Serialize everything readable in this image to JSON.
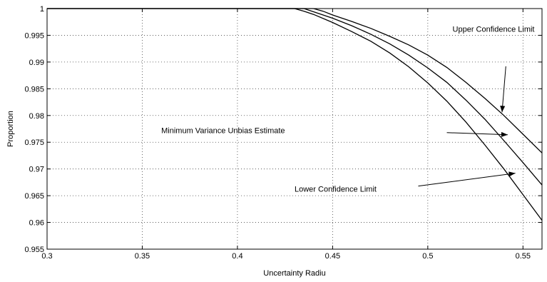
{
  "chart_data": {
    "type": "line",
    "title": "",
    "xlabel": "Uncertainty Radiu",
    "ylabel": "Proportion",
    "xlim": [
      0.3,
      0.56
    ],
    "ylim": [
      0.955,
      1
    ],
    "grid": true,
    "x_ticks": [
      {
        "value": 0.3,
        "label": "0.3"
      },
      {
        "value": 0.35,
        "label": "0.35"
      },
      {
        "value": 0.4,
        "label": "0.4"
      },
      {
        "value": 0.45,
        "label": "0.45"
      },
      {
        "value": 0.5,
        "label": "0.5"
      },
      {
        "value": 0.55,
        "label": "0.55"
      }
    ],
    "y_ticks": [
      {
        "value": 0.955,
        "label": "0.955"
      },
      {
        "value": 0.96,
        "label": "0.96"
      },
      {
        "value": 0.965,
        "label": "0.965"
      },
      {
        "value": 0.97,
        "label": "0.97"
      },
      {
        "value": 0.975,
        "label": "0.975"
      },
      {
        "value": 0.98,
        "label": "0.98"
      },
      {
        "value": 0.985,
        "label": "0.985"
      },
      {
        "value": 0.99,
        "label": "0.99"
      },
      {
        "value": 0.995,
        "label": "0.995"
      },
      {
        "value": 1,
        "label": "1"
      }
    ],
    "series": [
      {
        "x": [
          0.3,
          0.44,
          0.445,
          0.45,
          0.46,
          0.47,
          0.48,
          0.49,
          0.5,
          0.51,
          0.52,
          0.53,
          0.54,
          0.55,
          0.56
        ],
        "y": [
          1,
          1,
          0.9995,
          0.9988,
          0.9976,
          0.9963,
          0.9948,
          0.9932,
          0.9913,
          0.989,
          0.9862,
          0.9832,
          0.98,
          0.9765,
          0.973
        ]
      },
      {
        "x": [
          0.3,
          0.435,
          0.44,
          0.45,
          0.46,
          0.47,
          0.48,
          0.49,
          0.5,
          0.51,
          0.52,
          0.53,
          0.54,
          0.55,
          0.56
        ],
        "y": [
          1,
          1,
          0.9994,
          0.9982,
          0.9968,
          0.9952,
          0.9934,
          0.9913,
          0.9889,
          0.9862,
          0.9829,
          0.9793,
          0.9753,
          0.9712,
          0.967
        ]
      },
      {
        "x": [
          0.3,
          0.43,
          0.435,
          0.44,
          0.45,
          0.46,
          0.47,
          0.48,
          0.49,
          0.5,
          0.51,
          0.52,
          0.53,
          0.54,
          0.55,
          0.56
        ],
        "y": [
          1,
          1,
          0.9995,
          0.9989,
          0.9974,
          0.9957,
          0.9939,
          0.9917,
          0.9891,
          0.9861,
          0.9827,
          0.9788,
          0.9745,
          0.97,
          0.9652,
          0.9604
        ]
      }
    ],
    "annotations": [
      {
        "name": "upper-confidence-limit",
        "text": "Upper Confidence Limit",
        "x": 0.513,
        "y": 0.9962,
        "arrow_from": [
          0.541,
          0.9892
        ],
        "arrow_to": [
          0.539,
          0.9806
        ]
      },
      {
        "name": "minimum-variance-estimate",
        "text": "Minimum Variance Unbias Estimate",
        "x": 0.36,
        "y": 0.9772,
        "arrow_from": [
          0.51,
          0.9768
        ],
        "arrow_to": [
          0.542,
          0.9764
        ]
      },
      {
        "name": "lower-confidence-limit",
        "text": "Lower Confidence Limit",
        "x": 0.43,
        "y": 0.9663,
        "arrow_from": [
          0.495,
          0.9668
        ],
        "arrow_to": [
          0.546,
          0.9692
        ]
      }
    ]
  }
}
